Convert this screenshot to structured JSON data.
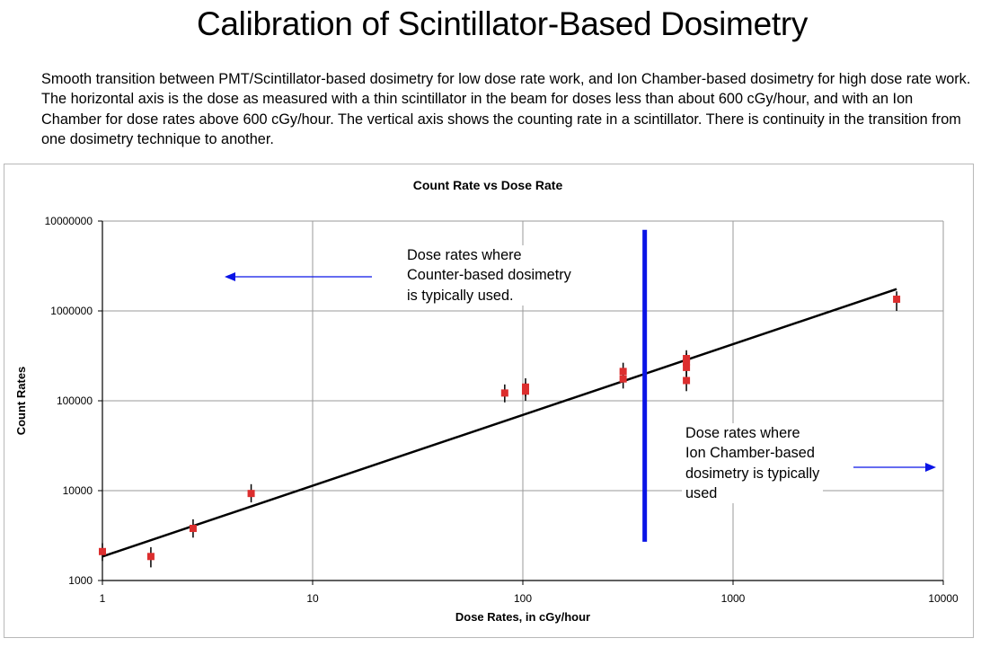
{
  "page": {
    "title": "Calibration of Scintillator-Based Dosimetry",
    "description": "Smooth transition between PMT/Scintillator-based dosimetry for low dose rate work, and Ion Chamber-based dosimetry for high dose rate work.  The horizontal axis is the dose as measured with a thin scintillator in the beam for doses less than about 600 cGy/hour, and with an Ion Chamber for dose rates above 600 cGy/hour.  The vertical axis shows the counting rate in a scintillator.  There is continuity in the transition from one dosimetry technique to another."
  },
  "chart_data": {
    "type": "scatter",
    "title": "Count Rate vs Dose Rate",
    "xlabel": "Dose Rates, in cGy/hour",
    "ylabel": "Count Rates",
    "x_scale": "log",
    "y_scale": "log",
    "xlim": [
      1,
      10000
    ],
    "ylim": [
      1000,
      10000000
    ],
    "x_ticks": [
      "1",
      "10",
      "100",
      "1000",
      "10000"
    ],
    "y_ticks": [
      "1000",
      "10000",
      "100000",
      "1000000",
      "10000000"
    ],
    "grid": true,
    "marker_color": "#dc2e2e",
    "fit_line_color": "#000000",
    "divider_color": "#0a14e6",
    "points": [
      {
        "x": 1.0,
        "y": 2100,
        "err_low": 1650,
        "err_high": 2600
      },
      {
        "x": 1.7,
        "y": 1850,
        "err_low": 1400,
        "err_high": 2350
      },
      {
        "x": 2.7,
        "y": 3800,
        "err_low": 3000,
        "err_high": 4800
      },
      {
        "x": 5.1,
        "y": 9300,
        "err_low": 7400,
        "err_high": 11800
      },
      {
        "x": 82,
        "y": 122000,
        "err_low": 96000,
        "err_high": 152000
      },
      {
        "x": 103,
        "y": 128000,
        "err_low": 100000,
        "err_high": 160000
      },
      {
        "x": 103,
        "y": 142000,
        "err_low": 112000,
        "err_high": 178000
      },
      {
        "x": 300,
        "y": 175000,
        "err_low": 137000,
        "err_high": 220000
      },
      {
        "x": 300,
        "y": 212000,
        "err_low": 166000,
        "err_high": 265000
      },
      {
        "x": 600,
        "y": 168000,
        "err_low": 128000,
        "err_high": 215000
      },
      {
        "x": 600,
        "y": 235000,
        "err_low": 185000,
        "err_high": 295000
      },
      {
        "x": 600,
        "y": 270000,
        "err_low": 215000,
        "err_high": 340000
      },
      {
        "x": 600,
        "y": 295000,
        "err_low": 235000,
        "err_high": 365000
      },
      {
        "x": 6000,
        "y": 1350000,
        "err_low": 1000000,
        "err_high": 1650000
      }
    ],
    "fit_line": {
      "x": [
        1,
        6000
      ],
      "y": [
        1850,
        1750000
      ]
    },
    "divider": {
      "x": 380,
      "y_range": [
        2700,
        8000000
      ]
    },
    "annotations": [
      {
        "lines": [
          "Dose rates where",
          "Counter-based dosimetry",
          "is typically used."
        ],
        "arrow": "left"
      },
      {
        "lines": [
          "Dose rates where",
          "Ion Chamber-based",
          "dosimetry is typically",
          "used"
        ],
        "arrow": "right"
      }
    ]
  }
}
